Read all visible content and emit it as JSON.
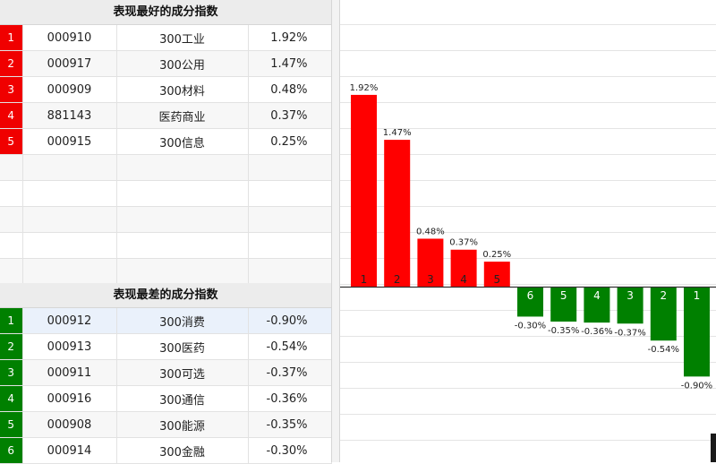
{
  "best": {
    "title": "表现最好的成分指数",
    "rank_color": "#f00000",
    "rows": [
      {
        "rank": "1",
        "code": "000910",
        "name": "300工业",
        "pct": "1.92%"
      },
      {
        "rank": "2",
        "code": "000917",
        "name": "300公用",
        "pct": "1.47%"
      },
      {
        "rank": "3",
        "code": "000909",
        "name": "300材料",
        "pct": "0.48%"
      },
      {
        "rank": "4",
        "code": "881143",
        "name": "医药商业",
        "pct": "0.37%"
      },
      {
        "rank": "5",
        "code": "000915",
        "name": "300信息",
        "pct": "0.25%"
      }
    ]
  },
  "worst": {
    "title": "表现最差的成分指数",
    "rank_color": "#008000",
    "rows": [
      {
        "rank": "1",
        "code": "000912",
        "name": "300消费",
        "pct": "-0.90%"
      },
      {
        "rank": "2",
        "code": "000913",
        "name": "300医药",
        "pct": "-0.54%"
      },
      {
        "rank": "3",
        "code": "000911",
        "name": "300可选",
        "pct": "-0.37%"
      },
      {
        "rank": "4",
        "code": "000916",
        "name": "300通信",
        "pct": "-0.36%"
      },
      {
        "rank": "5",
        "code": "000908",
        "name": "300能源",
        "pct": "-0.35%"
      },
      {
        "rank": "6",
        "code": "000914",
        "name": "300金融",
        "pct": "-0.30%"
      }
    ]
  },
  "chart_data": {
    "type": "bar",
    "categories": [
      "1",
      "2",
      "3",
      "4",
      "5",
      "6",
      "5",
      "4",
      "3",
      "2",
      "1"
    ],
    "values": [
      1.92,
      1.47,
      0.48,
      0.37,
      0.25,
      -0.3,
      -0.35,
      -0.36,
      -0.37,
      -0.54,
      -0.9
    ],
    "labels": [
      "1.92%",
      "1.47%",
      "0.48%",
      "0.37%",
      "0.25%",
      "-0.30%",
      "-0.35%",
      "-0.36%",
      "-0.37%",
      "-0.54%",
      "-0.90%"
    ],
    "title": "",
    "xlabel": "",
    "ylabel": "",
    "ylim": [
      -1.32,
      2.16
    ],
    "grid": true,
    "positive_color": "#ff0000",
    "negative_color": "#008000"
  }
}
